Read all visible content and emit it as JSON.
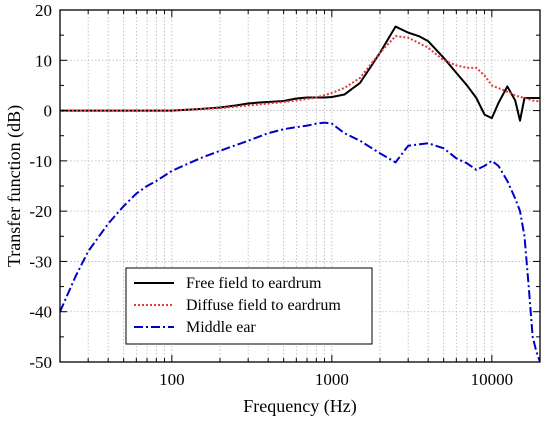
{
  "chart_data": {
    "type": "line",
    "xscale": "log",
    "xlabel": "Frequency (Hz)",
    "ylabel": "Transfer function (dB)",
    "xlim": [
      20,
      20000
    ],
    "ylim": [
      -50,
      20
    ],
    "x_ticks": [
      100,
      1000,
      10000
    ],
    "y_ticks": [
      -50,
      -40,
      -30,
      -20,
      -10,
      0,
      10,
      20
    ],
    "grid": true,
    "legend_position": "lower-center",
    "series": [
      {
        "name": "Free field to eardrum",
        "color": "#000000",
        "style": "solid",
        "x": [
          20,
          50,
          100,
          150,
          200,
          250,
          300,
          350,
          400,
          500,
          600,
          700,
          800,
          900,
          1000,
          1200,
          1500,
          2000,
          2500,
          3000,
          3500,
          4000,
          5000,
          6000,
          7000,
          8000,
          9000,
          10000,
          11000,
          12500,
          14000,
          15000,
          16000,
          17000,
          18000,
          20000
        ],
        "y": [
          0,
          0,
          0,
          0.3,
          0.6,
          1.0,
          1.4,
          1.6,
          1.7,
          1.9,
          2.4,
          2.6,
          2.6,
          2.6,
          2.7,
          3.2,
          5.5,
          11.5,
          16.7,
          15.5,
          14.8,
          13.8,
          10.5,
          7.5,
          5.0,
          2.5,
          -0.8,
          -1.5,
          1.5,
          4.8,
          2.0,
          -2.0,
          2.5,
          2.5,
          2.5,
          2.5
        ]
      },
      {
        "name": "Diffuse field to eardrum",
        "color": "#e03a3a",
        "style": "dotted",
        "x": [
          20,
          50,
          100,
          200,
          300,
          400,
          500,
          600,
          700,
          800,
          1000,
          1200,
          1500,
          2000,
          2500,
          3000,
          4000,
          5000,
          6000,
          7000,
          8000,
          9000,
          10000,
          12000,
          14000,
          16000,
          18000,
          20000
        ],
        "y": [
          0,
          0,
          0,
          0.5,
          1.0,
          1.4,
          1.7,
          2.0,
          2.3,
          2.6,
          3.5,
          4.5,
          6.5,
          11.5,
          14.8,
          14.5,
          12.5,
          10.0,
          9.0,
          8.5,
          8.5,
          7.0,
          5.0,
          4.0,
          3.0,
          2.5,
          2.0,
          1.8
        ]
      },
      {
        "name": "Middle ear",
        "color": "#0000cc",
        "style": "dashdot",
        "x": [
          20,
          25,
          30,
          40,
          50,
          60,
          70,
          80,
          100,
          150,
          200,
          300,
          400,
          500,
          600,
          700,
          800,
          900,
          1000,
          1200,
          1500,
          2000,
          2500,
          3000,
          4000,
          5000,
          6000,
          7000,
          8000,
          9000,
          10000,
          11000,
          12500,
          14000,
          15000,
          16000,
          17000,
          18000,
          19000,
          20000
        ],
        "y": [
          -40,
          -33,
          -28,
          -22.5,
          -19,
          -16.5,
          -15,
          -14,
          -12,
          -9.5,
          -8,
          -6,
          -4.5,
          -3.7,
          -3.3,
          -3.0,
          -2.6,
          -2.4,
          -2.6,
          -4.5,
          -6,
          -8.5,
          -10.3,
          -7,
          -6.5,
          -7.5,
          -9.5,
          -10.5,
          -11.8,
          -11,
          -10,
          -11,
          -14,
          -17.5,
          -20,
          -25,
          -35,
          -45,
          -48,
          -50
        ]
      }
    ]
  }
}
